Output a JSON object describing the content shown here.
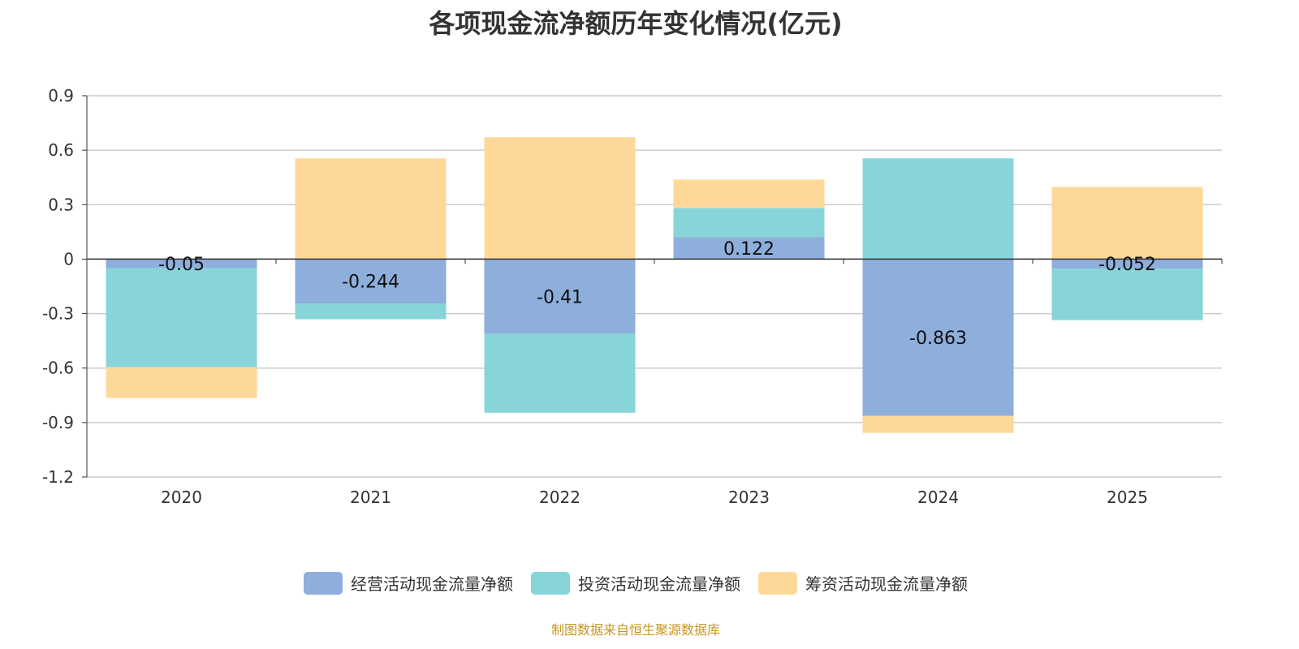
{
  "chart_data": {
    "type": "bar",
    "stacked": true,
    "title": "各项现金流净额历年变化情况(亿元)",
    "categories": [
      "2020",
      "2021",
      "2022",
      "2023",
      "2024",
      "2025"
    ],
    "series": [
      {
        "name": "经营活动现金流量净额",
        "color": "#8eaedb",
        "values": [
          -0.05,
          -0.244,
          -0.41,
          0.122,
          -0.863,
          -0.052
        ],
        "labels": [
          "-0.05",
          "-0.244",
          "-0.41",
          "0.122",
          "-0.863",
          "-0.052"
        ]
      },
      {
        "name": "投资活动现金流量净额",
        "color": "#87d5d9",
        "values": [
          -0.545,
          -0.087,
          -0.436,
          0.16,
          0.555,
          -0.284
        ]
      },
      {
        "name": "筹资活动现金流量净额",
        "color": "#fed899",
        "values": [
          -0.17,
          0.555,
          0.671,
          0.156,
          -0.094,
          0.398
        ]
      }
    ],
    "ylim": [
      -1.2,
      0.9
    ],
    "yticks": [
      "0.9",
      "0.6",
      "0.3",
      "0",
      "-0.3",
      "-0.6",
      "-0.9",
      "-1.2"
    ],
    "grid": true,
    "legend": "bottom"
  },
  "footer": "制图数据来自恒生聚源数据库"
}
